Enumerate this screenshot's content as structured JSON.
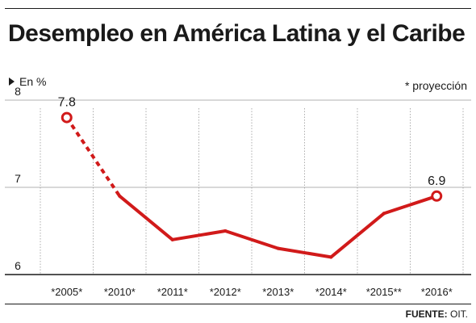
{
  "header": {
    "title": "Desempleo en América Latina y el Caribe"
  },
  "unit_label": "En %",
  "note": "* proyección",
  "source": {
    "label": "FUENTE:",
    "value": "OIT."
  },
  "colors": {
    "line": "#d11a1a",
    "text": "#1a1a1a",
    "grid": "#999999"
  },
  "chart_data": {
    "type": "line",
    "categories": [
      "*2005*",
      "*2010*",
      "*2011*",
      "*2012*",
      "*2013*",
      "*2014*",
      "*2015**",
      "*2016*"
    ],
    "values": [
      7.8,
      6.9,
      6.4,
      6.5,
      6.3,
      6.2,
      6.7,
      6.9
    ],
    "dashed_segments": [
      [
        0,
        1
      ]
    ],
    "highlighted_points": [
      {
        "index": 0,
        "label": "7.8"
      },
      {
        "index": 7,
        "label": "6.9"
      }
    ],
    "ylim": [
      6,
      8
    ],
    "yticks": [
      6,
      7,
      8
    ],
    "grid": true,
    "title": "Desempleo en América Latina y el Caribe",
    "xlabel": "",
    "ylabel": "En %"
  }
}
